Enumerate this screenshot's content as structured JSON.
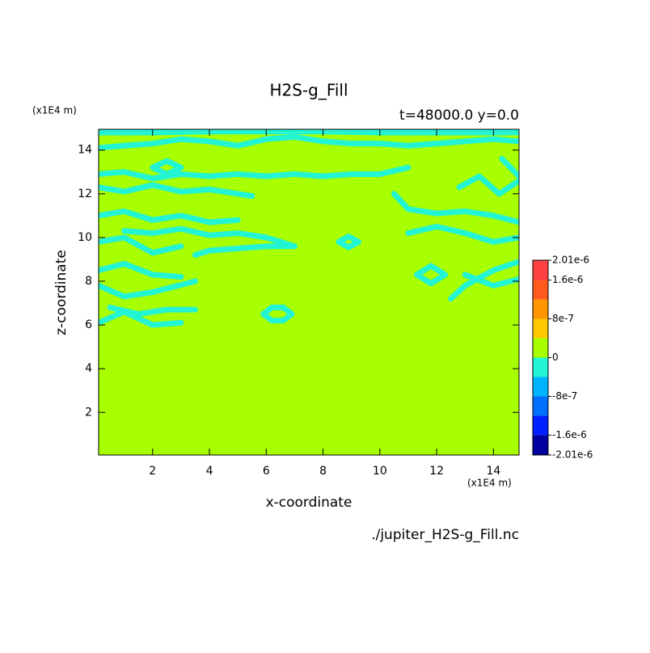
{
  "chart_data": {
    "type": "contour",
    "title": "H2S-g_Fill",
    "subtitle": "t=48000.0 y=0.0",
    "x_unit": "(x1E4 m)",
    "y_unit": "(x1E4 m)",
    "xlabel": "x-coordinate",
    "ylabel": "z-coordinate",
    "source": "./jupiter_H2S-g_Fill.nc",
    "xlim": [
      0.1,
      14.9
    ],
    "ylim": [
      0.05,
      14.95
    ],
    "xticks": [
      2,
      4,
      6,
      8,
      10,
      12,
      14
    ],
    "yticks": [
      2,
      4,
      6,
      8,
      10,
      12,
      14
    ],
    "fill_color": "#a8ff00",
    "contour_color": "#22f4d4",
    "levels": [
      -2.01e-06,
      -1.6e-06,
      -1.2e-06,
      -8e-07,
      -4e-07,
      0,
      4e-07,
      8e-07,
      1.2e-06,
      1.6e-06,
      2.01e-06
    ],
    "colors": [
      "#0000a0",
      "#0020ff",
      "#0070ff",
      "#00b4ff",
      "#22f4d4",
      "#a8ff00",
      "#ffc800",
      "#ff9600",
      "#ff5a1e",
      "#ff4040"
    ],
    "colorbar_ticks": [
      {
        "value": 2.01e-06,
        "label": "2.01e-6"
      },
      {
        "value": 1.6e-06,
        "label": "1.6e-6"
      },
      {
        "value": 8e-07,
        "label": "8e-7"
      },
      0,
      {
        "value": -8e-07,
        "label": "-8e-7"
      },
      {
        "value": -1.6e-06,
        "label": "-1.6e-6"
      },
      {
        "value": -2.01e-06,
        "label": "-2.01e-6"
      }
    ],
    "contours": [
      {
        "x": [
          0.1,
          2,
          4,
          6,
          8,
          10,
          12,
          14.9
        ],
        "z": [
          14.8,
          14.8,
          14.85,
          14.85,
          14.85,
          14.8,
          14.8,
          14.8
        ]
      },
      {
        "x": [
          0.1,
          1,
          2,
          3,
          4,
          5,
          6,
          7,
          8,
          9,
          10,
          11,
          12,
          13,
          14,
          14.9
        ],
        "z": [
          14.1,
          14.2,
          14.3,
          14.5,
          14.4,
          14.2,
          14.5,
          14.6,
          14.4,
          14.3,
          14.3,
          14.2,
          14.3,
          14.4,
          14.5,
          14.4
        ]
      },
      {
        "x": [
          0.1,
          1,
          2,
          3,
          4,
          5,
          6,
          7,
          8,
          9,
          10,
          11
        ],
        "z": [
          12.9,
          13.0,
          12.7,
          12.9,
          12.8,
          12.9,
          12.8,
          12.9,
          12.8,
          12.9,
          12.9,
          13.2
        ]
      },
      {
        "x": [
          0.1,
          1,
          2,
          3,
          4,
          5,
          5.5
        ],
        "z": [
          12.3,
          12.1,
          12.4,
          12.1,
          12.2,
          12.0,
          11.9
        ]
      },
      {
        "x": [
          2.0,
          2.5,
          3.0,
          2.5,
          2.0
        ],
        "z": [
          13.2,
          13.5,
          13.2,
          12.9,
          13.2
        ]
      },
      {
        "x": [
          0.1,
          1,
          2,
          3,
          4,
          5
        ],
        "z": [
          11.0,
          11.2,
          10.8,
          11.0,
          10.7,
          10.8
        ]
      },
      {
        "x": [
          1,
          2,
          3,
          4,
          5,
          6,
          7
        ],
        "z": [
          10.3,
          10.2,
          10.4,
          10.1,
          10.2,
          10.0,
          9.6
        ]
      },
      {
        "x": [
          3.5,
          4,
          5,
          6,
          7
        ],
        "z": [
          9.2,
          9.4,
          9.5,
          9.6,
          9.6
        ]
      },
      {
        "x": [
          0.1,
          1,
          2,
          3
        ],
        "z": [
          9.8,
          10.0,
          9.3,
          9.6
        ]
      },
      {
        "x": [
          0.1,
          1,
          2,
          3
        ],
        "z": [
          8.5,
          8.8,
          8.3,
          8.2
        ]
      },
      {
        "x": [
          0.1,
          1,
          2,
          3.5
        ],
        "z": [
          7.8,
          7.3,
          7.5,
          8.0
        ]
      },
      {
        "x": [
          0.5,
          1.5,
          2.5,
          3.5
        ],
        "z": [
          6.8,
          6.5,
          6.7,
          6.7
        ]
      },
      {
        "x": [
          0.1,
          1,
          2,
          3
        ],
        "z": [
          6.1,
          6.6,
          6.0,
          6.1
        ]
      },
      {
        "x": [
          5.9,
          6.2,
          6.6,
          6.9,
          6.6,
          6.2,
          5.9
        ],
        "z": [
          6.5,
          6.8,
          6.8,
          6.5,
          6.2,
          6.2,
          6.5
        ]
      },
      {
        "x": [
          8.55,
          8.9,
          9.25,
          8.9,
          8.55
        ],
        "z": [
          9.8,
          10.05,
          9.8,
          9.55,
          9.8
        ]
      },
      {
        "x": [
          10.5,
          11,
          12,
          13,
          14,
          14.9
        ],
        "z": [
          12.0,
          11.3,
          11.1,
          11.2,
          11.0,
          10.7
        ]
      },
      {
        "x": [
          11,
          12,
          13,
          14,
          14.9
        ],
        "z": [
          10.2,
          10.5,
          10.2,
          9.8,
          10.0
        ]
      },
      {
        "x": [
          12.8,
          13.5,
          14.2,
          14.9
        ],
        "z": [
          12.3,
          12.8,
          12.0,
          12.6
        ]
      },
      {
        "x": [
          14.3,
          14.9
        ],
        "z": [
          13.6,
          12.8
        ]
      },
      {
        "x": [
          12.5,
          13,
          14,
          14.9
        ],
        "z": [
          7.2,
          7.8,
          8.5,
          8.9
        ]
      },
      {
        "x": [
          13,
          14,
          14.9
        ],
        "z": [
          8.3,
          7.8,
          8.1
        ]
      },
      {
        "x": [
          11.3,
          11.8,
          12.3,
          11.8,
          11.3
        ],
        "z": [
          8.3,
          8.7,
          8.3,
          7.9,
          8.3
        ]
      }
    ]
  }
}
